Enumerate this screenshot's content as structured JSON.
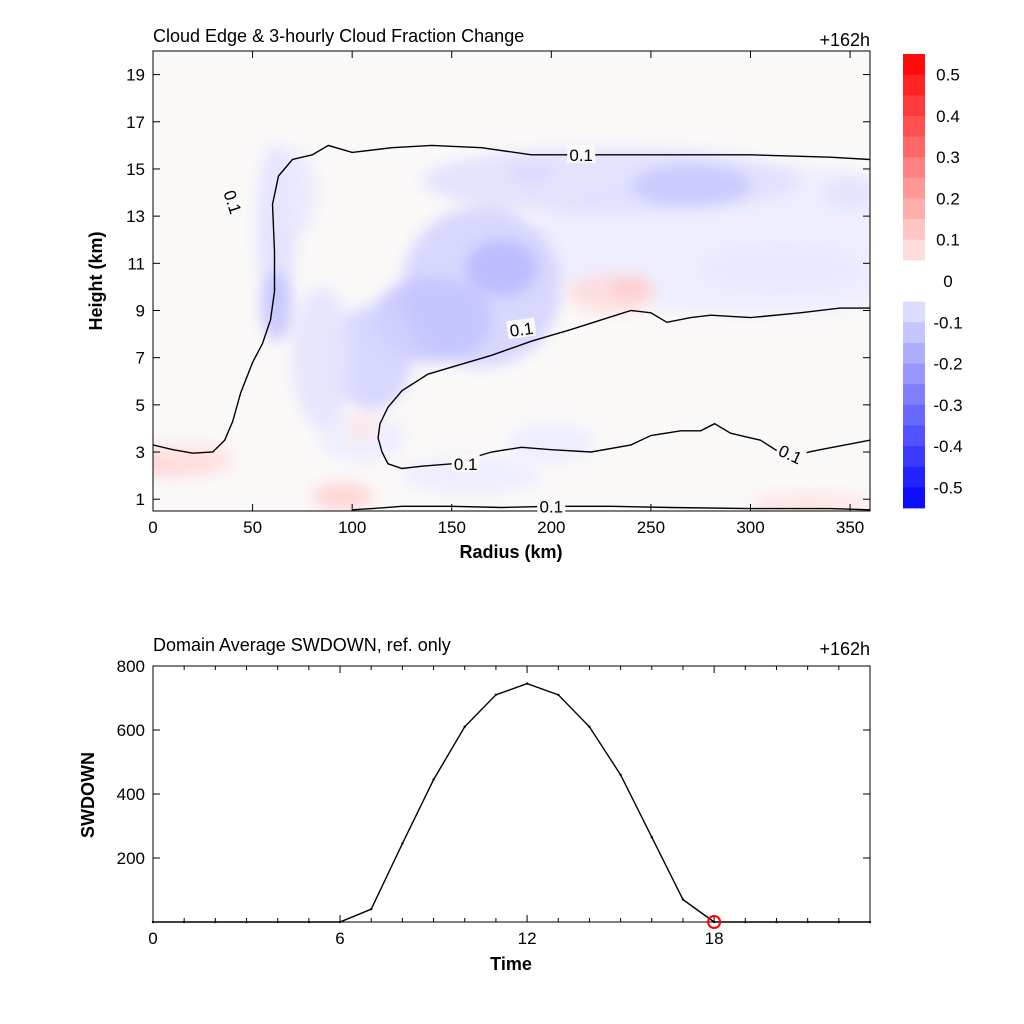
{
  "chart_data": [
    {
      "type": "heatmap",
      "title": "Cloud Edge & 3-hourly Cloud Fraction Change",
      "time_label": "+162h",
      "xlabel": "Radius (km)",
      "ylabel": "Height (km)",
      "xlim": [
        0,
        360
      ],
      "ylim": [
        0.5,
        20
      ],
      "x_ticks": [
        0,
        50,
        100,
        150,
        200,
        250,
        300,
        350
      ],
      "y_ticks": [
        1,
        3,
        5,
        7,
        9,
        11,
        13,
        15,
        17,
        19
      ],
      "colorbar": {
        "range": [
          -0.55,
          0.55
        ],
        "ticks": [
          "0.5",
          "0.4",
          "0.3",
          "0.2",
          "0.1",
          "0",
          "-0.1",
          "-0.2",
          "-0.3",
          "-0.4",
          "-0.5"
        ],
        "low_color": "#0000ff",
        "high_color": "#ff0000"
      },
      "contour_label": "0.1",
      "contours": [
        [
          [
            0,
            3.3
          ],
          [
            10,
            3.1
          ],
          [
            20,
            2.95
          ],
          [
            30,
            3.0
          ],
          [
            36,
            3.5
          ],
          [
            40,
            4.3
          ],
          [
            44,
            5.5
          ],
          [
            50,
            6.8
          ],
          [
            55,
            7.6
          ],
          [
            59,
            8.6
          ],
          [
            61,
            9.8
          ],
          [
            61,
            11.5
          ],
          [
            60,
            13.5
          ],
          [
            63,
            14.7
          ],
          [
            70,
            15.4
          ],
          [
            80,
            15.6
          ],
          [
            88,
            16.0
          ],
          [
            100,
            15.7
          ],
          [
            120,
            15.9
          ],
          [
            140,
            16.0
          ],
          [
            165,
            15.9
          ],
          [
            190,
            15.6
          ],
          [
            220,
            15.6
          ],
          [
            260,
            15.6
          ],
          [
            300,
            15.6
          ],
          [
            340,
            15.5
          ],
          [
            360,
            15.4
          ]
        ],
        [
          [
            115,
            3.0
          ],
          [
            113,
            3.6
          ],
          [
            114,
            4.2
          ],
          [
            118,
            4.9
          ],
          [
            125,
            5.6
          ],
          [
            138,
            6.3
          ],
          [
            150,
            6.6
          ],
          [
            170,
            7.1
          ],
          [
            190,
            7.7
          ],
          [
            210,
            8.2
          ],
          [
            225,
            8.6
          ],
          [
            240,
            9.0
          ],
          [
            250,
            8.9
          ],
          [
            258,
            8.5
          ],
          [
            270,
            8.7
          ],
          [
            280,
            8.8
          ],
          [
            300,
            8.7
          ],
          [
            325,
            8.9
          ],
          [
            345,
            9.1
          ],
          [
            360,
            9.1
          ]
        ],
        [
          [
            115,
            3.0
          ],
          [
            118,
            2.5
          ],
          [
            125,
            2.3
          ],
          [
            135,
            2.4
          ],
          [
            150,
            2.5
          ],
          [
            170,
            3.0
          ],
          [
            185,
            3.2
          ],
          [
            200,
            3.1
          ],
          [
            220,
            3.0
          ],
          [
            240,
            3.3
          ],
          [
            250,
            3.7
          ],
          [
            265,
            3.9
          ],
          [
            275,
            3.9
          ],
          [
            282,
            4.2
          ],
          [
            290,
            3.8
          ],
          [
            300,
            3.6
          ],
          [
            305,
            3.5
          ],
          [
            318,
            2.8
          ],
          [
            335,
            3.1
          ],
          [
            360,
            3.5
          ]
        ],
        [
          [
            100,
            0.55
          ],
          [
            110,
            0.6
          ],
          [
            125,
            0.7
          ],
          [
            150,
            0.7
          ],
          [
            175,
            0.65
          ],
          [
            200,
            0.7
          ],
          [
            230,
            0.7
          ],
          [
            260,
            0.65
          ],
          [
            300,
            0.6
          ],
          [
            340,
            0.6
          ],
          [
            360,
            0.55
          ]
        ]
      ]
    },
    {
      "type": "line",
      "title": "Domain Average SWDOWN, ref. only",
      "time_label": "+162h",
      "xlabel": "Time",
      "ylabel": "SWDOWN",
      "xlim": [
        0,
        23
      ],
      "ylim": [
        0,
        800
      ],
      "x_ticks": [
        0,
        6,
        12,
        18
      ],
      "y_ticks": [
        200,
        400,
        600,
        800
      ],
      "x": [
        0,
        1,
        2,
        3,
        4,
        5,
        6,
        7,
        8,
        9,
        10,
        11,
        12,
        13,
        14,
        15,
        16,
        17,
        18,
        19,
        20,
        21,
        22,
        23
      ],
      "values": [
        0,
        0,
        0,
        0,
        0,
        0,
        0,
        40,
        245,
        445,
        610,
        710,
        745,
        710,
        610,
        460,
        265,
        70,
        0,
        0,
        0,
        0,
        0,
        0
      ],
      "marker": {
        "x": 18,
        "y": 0,
        "color": "#ff0000"
      }
    }
  ]
}
